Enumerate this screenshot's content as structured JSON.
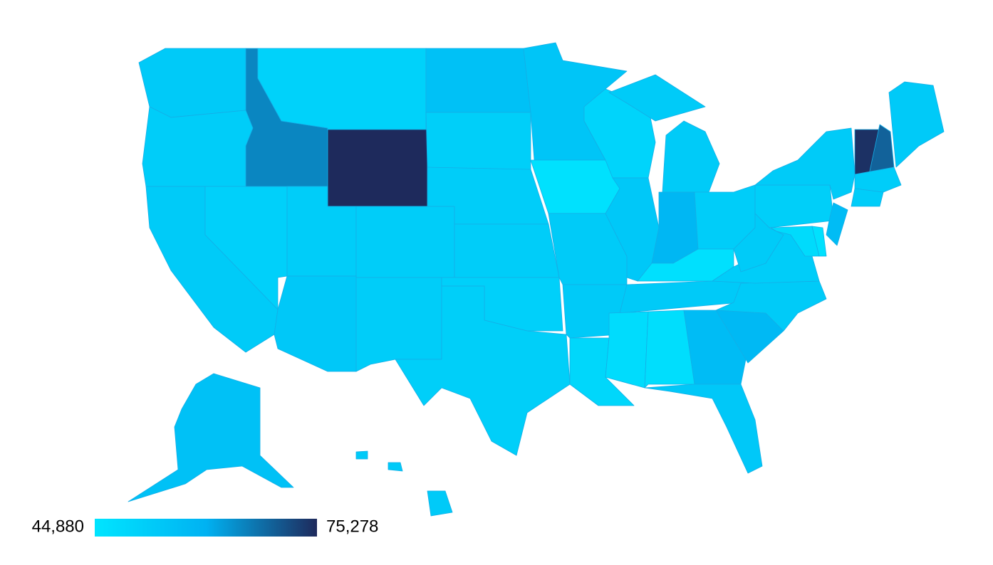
{
  "chart_data": {
    "type": "choropleth",
    "values": [
      53000,
      52000,
      52500,
      51000,
      65000,
      50500,
      75278,
      52000,
      52000,
      53500,
      52000,
      55500,
      51500,
      52000,
      52000,
      51000,
      51500,
      54500,
      46000,
      52500,
      53000,
      49000,
      50000,
      53500,
      52500,
      58500,
      52000,
      46500,
      53000,
      47500,
      47000,
      57000,
      53500,
      58000,
      52500,
      52000,
      52500,
      51500,
      52500,
      74500,
      69000,
      53000,
      52000,
      52000,
      57000,
      48000,
      46000,
      55500,
      53000
    ],
    "colorscale": [
      "#00e5ff",
      "#00b2f2",
      "#1e2a5c"
    ],
    "range": [
      {
        "value": 44880,
        "label": "44,880"
      },
      {
        "value": 75278,
        "label": "75,278"
      }
    ]
  }
}
